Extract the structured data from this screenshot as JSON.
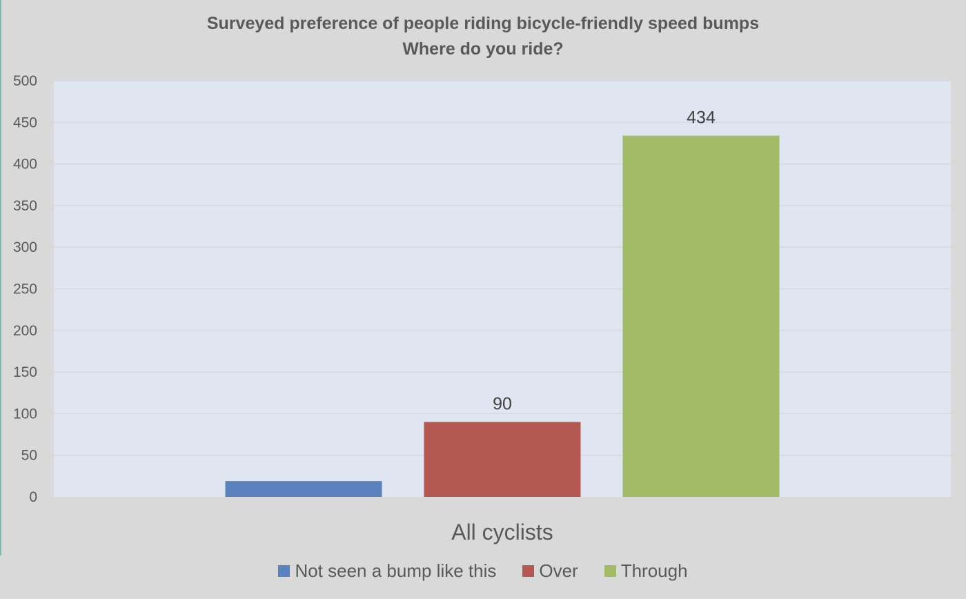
{
  "chart_data": {
    "type": "bar",
    "title": "Surveyed preference of people riding bicycle-friendly speed bumps",
    "subtitle": "Where do you ride?",
    "categories": [
      "All cyclists"
    ],
    "series": [
      {
        "name": "Not seen a bump like this",
        "values": [
          19
        ],
        "color": "#5b82bd",
        "data_label": ""
      },
      {
        "name": "Over",
        "values": [
          90
        ],
        "color": "#b45852",
        "data_label": "90"
      },
      {
        "name": "Through",
        "values": [
          434
        ],
        "color": "#a2bb66",
        "data_label": "434"
      }
    ],
    "xlabel": "All cyclists",
    "ylabel": "",
    "ylim": [
      0,
      500
    ],
    "yticks": [
      "0",
      "50",
      "100",
      "150",
      "200",
      "250",
      "300",
      "350",
      "400",
      "450",
      "500"
    ],
    "grid": true,
    "legend_position": "bottom",
    "plot_background": "#e0e6f1",
    "chart_background": "#d9d9d9"
  }
}
